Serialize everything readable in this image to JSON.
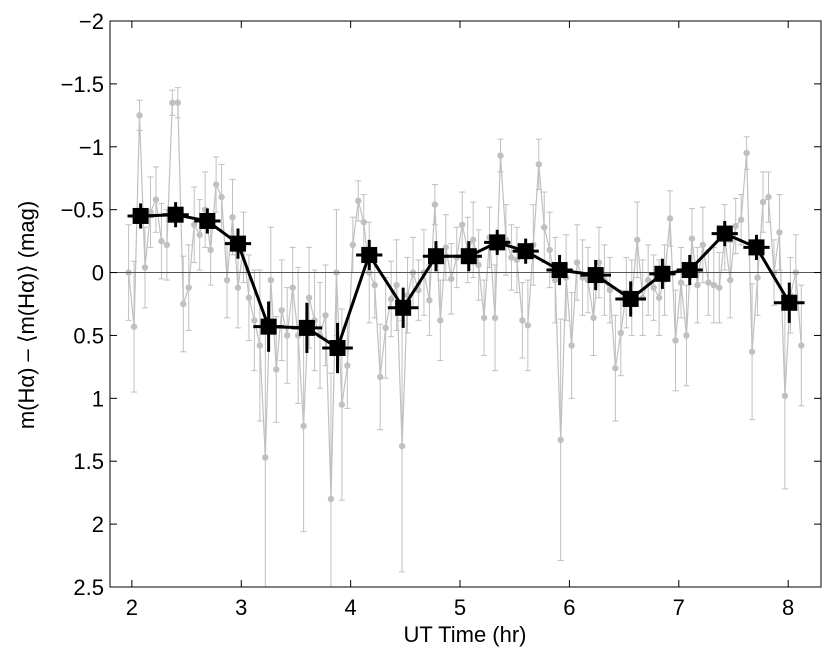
{
  "chart_data": {
    "type": "scatter",
    "title": "",
    "xlabel": "UT Time  (hr)",
    "ylabel": "m(Hα) – ⟨m(Hα)⟩  (mag)",
    "xlim": [
      1.8,
      8.3
    ],
    "ylim": [
      2.5,
      -2
    ],
    "y_inverted": true,
    "x_ticks": [
      2,
      3,
      4,
      5,
      6,
      7,
      8
    ],
    "x_tick_labels": [
      "2",
      "3",
      "4",
      "5",
      "6",
      "7",
      "8"
    ],
    "y_ticks": [
      -2,
      -1.5,
      -1,
      -0.5,
      0,
      0.5,
      1,
      1.5,
      2,
      2.5
    ],
    "y_tick_labels": [
      "−2",
      "−1.5",
      "−1",
      "−0.5",
      "0",
      "0.5",
      "1",
      "1.5",
      "2",
      "2.5"
    ],
    "reference_line_y": 0,
    "grid": false,
    "legend": "none",
    "colors": {
      "individual": "#c0c0c0",
      "binned": "#000000",
      "reference": "#555555"
    },
    "series": [
      {
        "style": "individual",
        "x": [
          1.97,
          2.02,
          2.07,
          2.12,
          2.17,
          2.22,
          2.27,
          2.32,
          2.37,
          2.42,
          2.47,
          2.52,
          2.57,
          2.62,
          2.67,
          2.72,
          2.77,
          2.82,
          2.87,
          2.92,
          2.97,
          3.02,
          3.07,
          3.12,
          3.17,
          3.22,
          3.27,
          3.32,
          3.37,
          3.42,
          3.47,
          3.52,
          3.57,
          3.62,
          3.67,
          3.72,
          3.77,
          3.82,
          3.87,
          3.92,
          3.97,
          4.02,
          4.07,
          4.12,
          4.17,
          4.22,
          4.27,
          4.32,
          4.37,
          4.42,
          4.47,
          4.52,
          4.57,
          4.62,
          4.67,
          4.72,
          4.77,
          4.82,
          4.87,
          4.92,
          4.97,
          5.02,
          5.07,
          5.12,
          5.17,
          5.22,
          5.27,
          5.32,
          5.37,
          5.42,
          5.47,
          5.52,
          5.57,
          5.62,
          5.67,
          5.72,
          5.77,
          5.82,
          5.87,
          5.92,
          5.97,
          6.02,
          6.07,
          6.12,
          6.17,
          6.22,
          6.27,
          6.32,
          6.37,
          6.42,
          6.47,
          6.52,
          6.57,
          6.62,
          6.67,
          6.72,
          6.77,
          6.82,
          6.87,
          6.92,
          6.97,
          7.02,
          7.07,
          7.12,
          7.17,
          7.22,
          7.27,
          7.32,
          7.37,
          7.42,
          7.47,
          7.52,
          7.57,
          7.62,
          7.67,
          7.72,
          7.77,
          7.82,
          7.87,
          7.92,
          7.97,
          8.02,
          8.07,
          8.12
        ],
        "y": [
          0.0,
          0.43,
          -1.25,
          -0.04,
          -0.48,
          -0.58,
          -0.25,
          -0.22,
          -1.35,
          -1.35,
          0.25,
          0.12,
          -0.38,
          -0.3,
          -0.5,
          -0.18,
          -0.7,
          -0.6,
          0.06,
          -0.44,
          0.12,
          -0.2,
          0.2,
          0.38,
          0.58,
          1.47,
          0.06,
          0.77,
          0.3,
          0.5,
          0.12,
          0.5,
          1.22,
          0.2,
          0.38,
          0.5,
          0.34,
          1.8,
          0.0,
          1.05,
          0.74,
          -0.22,
          -0.57,
          -0.4,
          0.0,
          0.1,
          0.83,
          0.44,
          0.21,
          0.1,
          1.38,
          0.18,
          0.0,
          0.14,
          0.0,
          0.22,
          -0.54,
          0.38,
          -0.2,
          0.05,
          -0.12,
          -0.38,
          -0.18,
          -0.26,
          -0.06,
          0.36,
          -0.28,
          0.36,
          -0.93,
          -0.26,
          -0.12,
          -0.1,
          0.38,
          0.42,
          -0.22,
          -0.86,
          -0.36,
          -0.18,
          0.06,
          1.33,
          0.04,
          0.58,
          -0.08,
          0.04,
          0.06,
          0.36,
          -0.08,
          0.06,
          0.14,
          0.76,
          0.48,
          0.16,
          0.2,
          -0.26,
          0.2,
          0.06,
          0.12,
          0.2,
          0.06,
          -0.43,
          0.54,
          0.08,
          0.5,
          -0.27,
          0.1,
          -0.22,
          0.08,
          0.1,
          0.12,
          -0.28,
          0.06,
          -0.37,
          -0.42,
          -0.95,
          0.63,
          0.04,
          -0.56,
          -0.6,
          0.0,
          -0.32,
          0.98,
          0.18,
          0.0,
          0.58
        ],
        "err": [
          0.38,
          0.52,
          0.12,
          0.32,
          0.28,
          0.26,
          0.3,
          0.28,
          0.1,
          0.12,
          0.38,
          0.34,
          0.3,
          0.28,
          0.3,
          0.28,
          0.22,
          0.26,
          0.3,
          0.3,
          0.32,
          0.28,
          0.34,
          0.4,
          0.6,
          1.08,
          0.42,
          0.42,
          0.4,
          0.38,
          0.32,
          0.54,
          0.84,
          0.4,
          0.4,
          0.42,
          0.4,
          1.0,
          0.5,
          0.76,
          0.34,
          0.22,
          0.16,
          0.22,
          0.4,
          0.26,
          0.42,
          0.4,
          0.3,
          0.36,
          1.0,
          0.3,
          0.28,
          0.24,
          0.34,
          0.28,
          0.16,
          0.32,
          0.26,
          0.28,
          0.24,
          0.26,
          0.26,
          0.3,
          0.28,
          0.3,
          0.24,
          0.42,
          0.13,
          0.28,
          0.26,
          0.26,
          0.3,
          0.36,
          0.32,
          0.2,
          0.28,
          0.3,
          0.34,
          0.96,
          0.34,
          0.42,
          0.3,
          0.3,
          0.26,
          0.3,
          0.28,
          0.28,
          0.26,
          0.42,
          0.34,
          0.28,
          0.3,
          0.3,
          0.3,
          0.28,
          0.26,
          0.3,
          0.28,
          0.22,
          0.4,
          0.28,
          0.4,
          0.24,
          0.3,
          0.3,
          0.26,
          0.3,
          0.28,
          0.26,
          0.3,
          0.22,
          0.2,
          0.13,
          0.54,
          0.3,
          0.24,
          0.2,
          0.26,
          0.3,
          0.74,
          0.3,
          0.3,
          0.48
        ]
      },
      {
        "style": "binned",
        "x": [
          2.08,
          2.4,
          2.69,
          2.97,
          3.25,
          3.6,
          3.88,
          4.17,
          4.48,
          4.78,
          5.08,
          5.34,
          5.6,
          5.91,
          6.24,
          6.56,
          6.85,
          7.1,
          7.42,
          7.71,
          8.01
        ],
        "y": [
          -0.45,
          -0.46,
          -0.41,
          -0.23,
          0.43,
          0.44,
          0.6,
          -0.14,
          0.28,
          -0.13,
          -0.13,
          -0.24,
          -0.17,
          -0.02,
          0.02,
          0.21,
          0.01,
          -0.02,
          -0.31,
          -0.2,
          0.24
        ],
        "xerr": [
          0.12,
          0.12,
          0.12,
          0.12,
          0.14,
          0.14,
          0.14,
          0.12,
          0.14,
          0.12,
          0.12,
          0.12,
          0.12,
          0.12,
          0.14,
          0.14,
          0.12,
          0.12,
          0.12,
          0.12,
          0.14
        ],
        "yerr": [
          0.1,
          0.1,
          0.1,
          0.12,
          0.2,
          0.2,
          0.2,
          0.12,
          0.16,
          0.12,
          0.12,
          0.1,
          0.1,
          0.12,
          0.12,
          0.14,
          0.12,
          0.12,
          0.1,
          0.1,
          0.16
        ]
      }
    ]
  }
}
